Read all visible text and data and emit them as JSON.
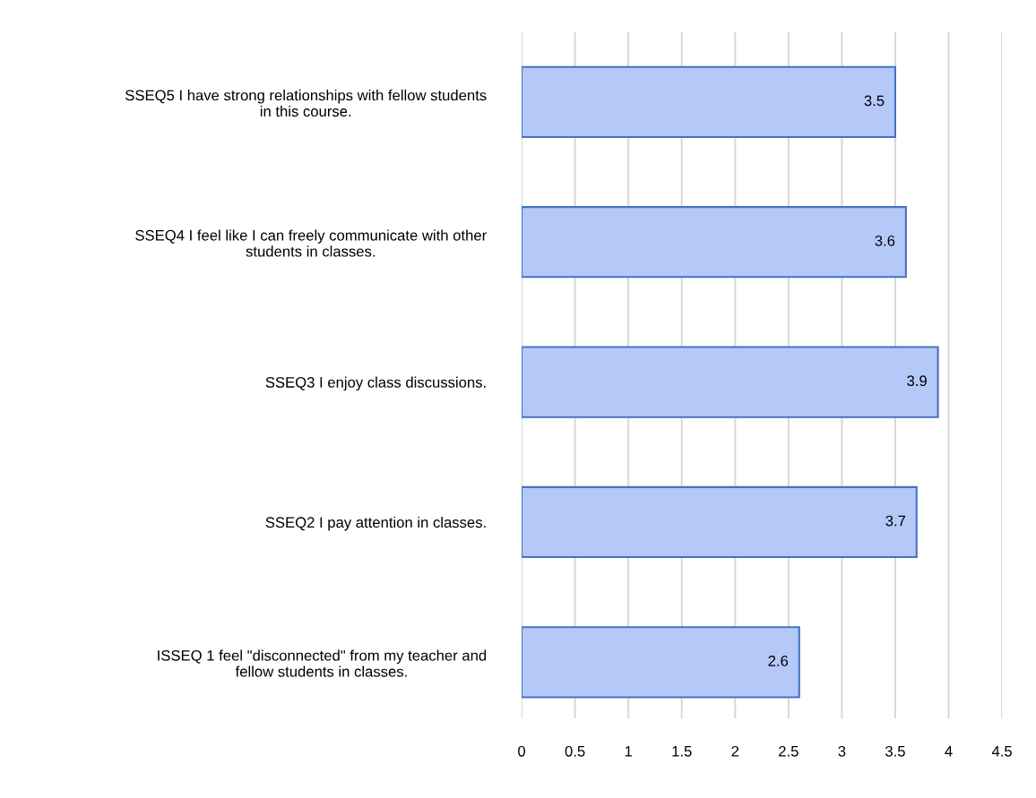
{
  "chart_data": {
    "type": "bar",
    "orientation": "horizontal",
    "categories": [
      "SSEQ5 I have strong relationships with fellow students\nin this course.",
      "SSEQ4 I feel like I can freely communicate with other\nstudents in classes.",
      "SSEQ3 I enjoy class discussions.",
      "SSEQ2 I pay attention in classes.",
      "ISSEQ 1 feel \"disconnected\" from my teacher and\nfellow students in classes."
    ],
    "values": [
      3.5,
      3.6,
      3.9,
      3.7,
      2.6
    ],
    "color": "#b4c9f8",
    "xlim": [
      0,
      4.5
    ],
    "xticks": [
      0,
      0.5,
      1,
      1.5,
      2,
      2.5,
      3,
      3.5,
      4,
      4.5
    ],
    "grid": "x",
    "data_labels": true
  }
}
